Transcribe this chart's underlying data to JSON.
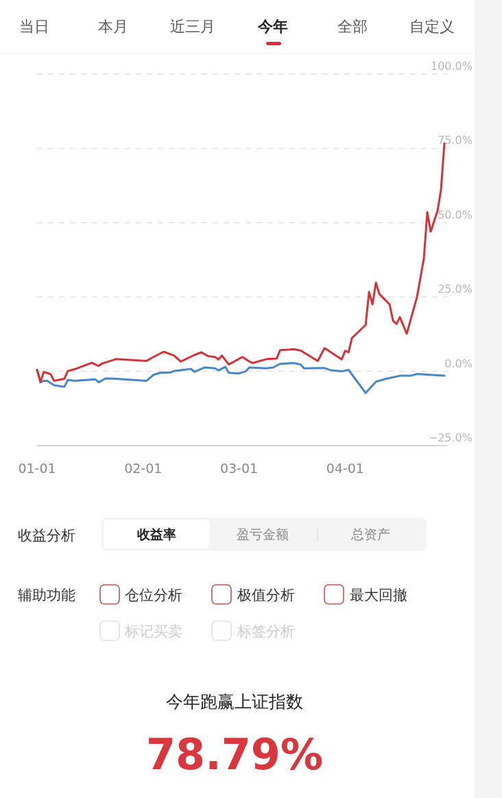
{
  "chart_data": {
    "type": "line",
    "xlim": [
      "--01-01",
      "--05-01"
    ],
    "xticks": [
      {
        "value": "--01-01",
        "label": "01-01"
      },
      {
        "value": "--02-01",
        "label": "02-01"
      },
      {
        "value": "--03-01",
        "label": "03-01"
      },
      {
        "value": "--04-01",
        "label": "04-01"
      }
    ],
    "ylim": [
      -25,
      100
    ],
    "yticks": [
      {
        "value": -25,
        "label": "−25.0%"
      },
      {
        "value": 0,
        "label": "0.0%"
      },
      {
        "value": 25,
        "label": "25.0%"
      },
      {
        "value": 50,
        "label": "50.0%"
      },
      {
        "value": 75,
        "label": "75.0%"
      },
      {
        "value": 100,
        "label": "100.0%"
      }
    ],
    "grid": "y",
    "series": [
      {
        "color": "#d0343a",
        "x": [
          "--01-01",
          "--01-02",
          "--01-03",
          "--01-05",
          "--01-06",
          "--01-09",
          "--01-10",
          "--01-12",
          "--01-17",
          "--01-19",
          "--01-20",
          "--01-24",
          "--02-02",
          "--02-04",
          "--02-07",
          "--02-10",
          "--02-12",
          "--02-16",
          "--02-18",
          "--02-20",
          "--02-22",
          "--02-23",
          "--02-24",
          "--02-26",
          "--03-02",
          "--03-04",
          "--03-05",
          "--03-09",
          "--03-12",
          "--03-13",
          "--03-17",
          "--03-19",
          "--03-24",
          "--03-26",
          "--03-31",
          "--04-01",
          "--04-02",
          "--04-03",
          "--04-07",
          "--04-08",
          "--04-09",
          "--04-10",
          "--04-11",
          "--04-14",
          "--04-15",
          "--04-16",
          "--04-17",
          "--04-19",
          "--04-22",
          "--04-24",
          "--04-25",
          "--04-26",
          "--04-28",
          "--04-29",
          "--04-30"
        ],
        "values": [
          0.5,
          -3.5,
          -0.2,
          -1.0,
          -3.2,
          -2.5,
          0.1,
          0.7,
          2.9,
          1.8,
          2.6,
          4.1,
          3.5,
          4.8,
          6.6,
          5.3,
          3.3,
          5.5,
          6.4,
          5.1,
          4.8,
          4.0,
          5.3,
          2.3,
          4.8,
          3.3,
          2.8,
          4.1,
          4.3,
          7.1,
          7.4,
          7.0,
          3.5,
          7.8,
          4.0,
          6.9,
          6.4,
          11.2,
          15.6,
          26.7,
          22.5,
          29.8,
          26.0,
          22.5,
          17.0,
          15.9,
          18.2,
          12.6,
          25.0,
          37.9,
          53.5,
          47.0,
          54.0,
          61.0,
          76.7
        ]
      },
      {
        "color": "#4a86c8",
        "x": [
          "--01-01",
          "--01-02",
          "--01-03",
          "--01-04",
          "--01-06",
          "--01-09",
          "--01-10",
          "--01-12",
          "--01-18",
          "--01-19",
          "--01-21",
          "--01-24",
          "--02-02",
          "--02-04",
          "--02-06",
          "--02-09",
          "--02-10",
          "--02-15",
          "--02-16",
          "--02-19",
          "--02-22",
          "--02-23",
          "--02-25",
          "--02-26",
          "--03-01",
          "--03-03",
          "--03-04",
          "--03-09",
          "--03-11",
          "--03-13",
          "--03-17",
          "--03-19",
          "--03-20",
          "--03-26",
          "--03-28",
          "--03-31",
          "--04-02",
          "--04-07",
          "--04-10",
          "--04-13",
          "--04-17",
          "--04-20",
          "--04-22",
          "--04-26",
          "--04-30"
        ],
        "values": [
          0.5,
          -3.7,
          -3.2,
          -3.2,
          -4.7,
          -5.2,
          -2.9,
          -3.2,
          -2.7,
          -3.7,
          -2.4,
          -2.5,
          -3.2,
          -1.2,
          -0.5,
          -0.4,
          0.1,
          0.8,
          -0.2,
          1.3,
          1.0,
          0.3,
          1.5,
          -0.5,
          -0.7,
          0.0,
          1.3,
          1.0,
          1.3,
          2.5,
          2.8,
          2.3,
          1.0,
          1.1,
          0.3,
          0.0,
          0.5,
          -7.3,
          -3.5,
          -2.5,
          -1.5,
          -1.5,
          -0.9,
          -1.2,
          -1.5
        ]
      }
    ],
    "annotations": [
      "当日",
      "本月",
      "近三月",
      "今年",
      "全部",
      "自定义",
      "收益分析",
      "收益率",
      "盈亏金额",
      "总资产",
      "辅助功能",
      "仓位分析",
      "极值分析",
      "最大回撤",
      "标记买卖",
      "标签分析",
      "今年跑赢上证指数",
      "78.79%"
    ]
  }
}
